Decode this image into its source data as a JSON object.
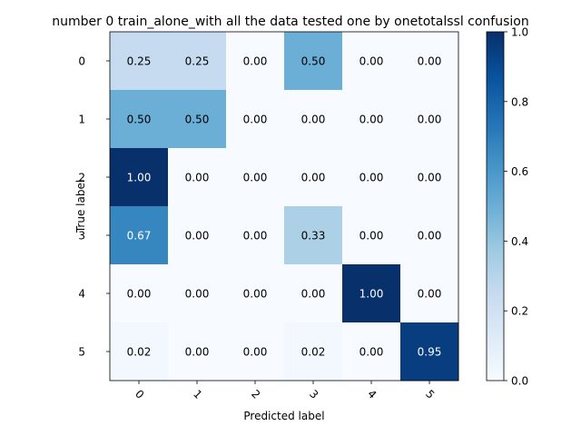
{
  "chart_data": {
    "type": "heatmap",
    "title": "number 0  train_alone_with all the data tested one by onetotalssl confusion",
    "xlabel": "Predicted label",
    "ylabel": "True label",
    "x_tick_labels": [
      "0",
      "1",
      "2",
      "3",
      "4",
      "5"
    ],
    "y_tick_labels": [
      "0",
      "1",
      "2",
      "3",
      "4",
      "5"
    ],
    "values": [
      [
        0.25,
        0.25,
        0.0,
        0.5,
        0.0,
        0.0
      ],
      [
        0.5,
        0.5,
        0.0,
        0.0,
        0.0,
        0.0
      ],
      [
        1.0,
        0.0,
        0.0,
        0.0,
        0.0,
        0.0
      ],
      [
        0.67,
        0.0,
        0.0,
        0.33,
        0.0,
        0.0
      ],
      [
        0.0,
        0.0,
        0.0,
        0.0,
        1.0,
        0.0
      ],
      [
        0.02,
        0.0,
        0.0,
        0.02,
        0.0,
        0.95
      ]
    ],
    "cell_labels": [
      [
        "0.25",
        "0.25",
        "0.00",
        "0.50",
        "0.00",
        "0.00"
      ],
      [
        "0.50",
        "0.50",
        "0.00",
        "0.00",
        "0.00",
        "0.00"
      ],
      [
        "1.00",
        "0.00",
        "0.00",
        "0.00",
        "0.00",
        "0.00"
      ],
      [
        "0.67",
        "0.00",
        "0.00",
        "0.33",
        "0.00",
        "0.00"
      ],
      [
        "0.00",
        "0.00",
        "0.00",
        "0.00",
        "1.00",
        "0.00"
      ],
      [
        "0.02",
        "0.00",
        "0.00",
        "0.02",
        "0.00",
        "0.95"
      ]
    ],
    "colormap": "Blues",
    "vmin": 0.0,
    "vmax": 1.0,
    "colorbar_ticks": [
      {
        "value": 0.0,
        "label": "0.0"
      },
      {
        "value": 0.2,
        "label": "0.2"
      },
      {
        "value": 0.4,
        "label": "0.4"
      },
      {
        "value": 0.6,
        "label": "0.6"
      },
      {
        "value": 0.8,
        "label": "0.8"
      },
      {
        "value": 1.0,
        "label": "1.0"
      }
    ],
    "text_color_dark": "#000000",
    "text_color_light": "#ffffff"
  }
}
